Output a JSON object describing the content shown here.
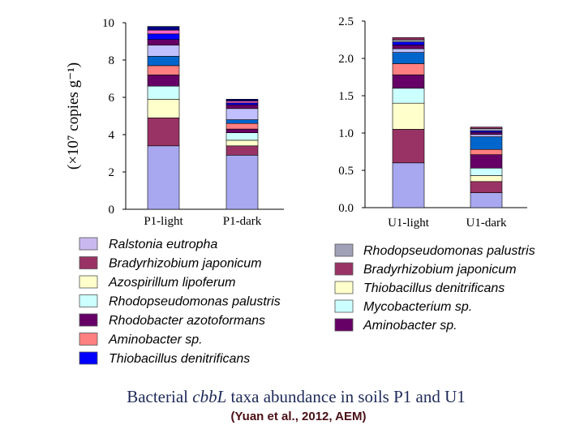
{
  "title": {
    "prefix": "Bacterial ",
    "gene": "cbbL",
    "suffix": " taxa abundance in soils P1 and U1"
  },
  "citation": "(Yuan et al., 2012, AEM)",
  "chart_data": [
    {
      "type": "bar",
      "stacked": true,
      "categories": [
        "P1-light",
        "P1-dark"
      ],
      "ylabel": "(×10⁷ copies g⁻¹)",
      "ylim": [
        0,
        10
      ],
      "yticks": [
        "0",
        "2",
        "4",
        "6",
        "8",
        "10"
      ],
      "grid": false,
      "legend_position": "bottom-left",
      "series": [
        {
          "name": "Ralstonia eutropha",
          "color": "#a8a8f0",
          "values": [
            3.4,
            2.9
          ]
        },
        {
          "name": "Bradyrhizobium japonicum",
          "color": "#993366",
          "values": [
            1.5,
            0.5
          ]
        },
        {
          "name": "Azospirillum lipoferum",
          "color": "#ffffcc",
          "values": [
            1.0,
            0.3
          ]
        },
        {
          "name": "Rhodopseudomonas palustris",
          "color": "#ccffff",
          "values": [
            0.7,
            0.4
          ]
        },
        {
          "name": "Rhodobacter azotoformans",
          "color": "#660066",
          "values": [
            0.6,
            0.2
          ]
        },
        {
          "name": "Aminobacter sp.",
          "color": "#ff8080",
          "values": [
            0.5,
            0.3
          ]
        },
        {
          "name": "Thiobacillus denitrificans",
          "color": "#0066cc",
          "values": [
            0.5,
            0.2
          ]
        },
        {
          "name": "",
          "color": "#c0c0ff",
          "values": [
            0.6,
            0.6
          ]
        },
        {
          "name": "",
          "color": "#660066",
          "values": [
            0.3,
            0.2
          ]
        },
        {
          "name": "",
          "color": "#0000ff",
          "values": [
            0.3,
            0.1
          ]
        },
        {
          "name": "",
          "color": "#ff66cc",
          "values": [
            0.2,
            0.1
          ]
        },
        {
          "name": "",
          "color": "#000080",
          "values": [
            0.2,
            0.1
          ]
        }
      ]
    },
    {
      "type": "bar",
      "stacked": true,
      "categories": [
        "U1-light",
        "U1-dark"
      ],
      "ylim": [
        0,
        2.5
      ],
      "yticks": [
        "0.0",
        "0.5",
        "1.0",
        "1.5",
        "2.0",
        "2.5"
      ],
      "grid": false,
      "legend_position": "bottom-right",
      "series": [
        {
          "name": "",
          "color": "#a8a8f0",
          "values": [
            0.6,
            0.2
          ]
        },
        {
          "name": "",
          "color": "#993366",
          "values": [
            0.45,
            0.15
          ]
        },
        {
          "name": "Thiobacillus denitrificans",
          "color": "#ffffcc",
          "values": [
            0.35,
            0.08
          ]
        },
        {
          "name": "Mycobacterium sp.",
          "color": "#ccffff",
          "values": [
            0.2,
            0.1
          ]
        },
        {
          "name": "",
          "color": "#660066",
          "values": [
            0.18,
            0.18
          ]
        },
        {
          "name": "",
          "color": "#ff8080",
          "values": [
            0.15,
            0.07
          ]
        },
        {
          "name": "",
          "color": "#0066cc",
          "values": [
            0.15,
            0.17
          ]
        },
        {
          "name": "",
          "color": "#c0c0ff",
          "values": [
            0.05,
            0.03
          ]
        },
        {
          "name": "Aminobacter sp.",
          "color": "#660066",
          "values": [
            0.05,
            0.03
          ]
        },
        {
          "name": "",
          "color": "#0000ff",
          "values": [
            0.04,
            0.02
          ]
        },
        {
          "name": "Rhodopseudomonas palustris",
          "color": "#a0a0b8",
          "values": [
            0.03,
            0.03
          ]
        },
        {
          "name": "Bradyrhizobium japonicum",
          "color": "#993366",
          "values": [
            0.03,
            0.02
          ]
        }
      ]
    }
  ],
  "legend_left": [
    {
      "label": "Ralstonia eutropha",
      "color": "#c9b8f0"
    },
    {
      "label": "Bradyrhizobium japonicum",
      "color": "#993366"
    },
    {
      "label": "Azospirillum lipoferum",
      "color": "#ffffcc"
    },
    {
      "label": "Rhodopseudomonas palustris",
      "color": "#ccffff"
    },
    {
      "label": "Rhodobacter azotoformans",
      "color": "#660066"
    },
    {
      "label": "Aminobacter sp.",
      "color": "#ff8080"
    },
    {
      "label": "Thiobacillus denitrificans",
      "color": "#0000ff"
    }
  ],
  "legend_right": [
    {
      "label": "Rhodopseudomonas palustris",
      "color": "#a0a0b8"
    },
    {
      "label": "Bradyrhizobium japonicum",
      "color": "#993366"
    },
    {
      "label": "Thiobacillus denitrificans",
      "color": "#ffffcc"
    },
    {
      "label": "Mycobacterium sp.",
      "color": "#ccffff"
    },
    {
      "label": "Aminobacter sp.",
      "color": "#660066"
    }
  ]
}
